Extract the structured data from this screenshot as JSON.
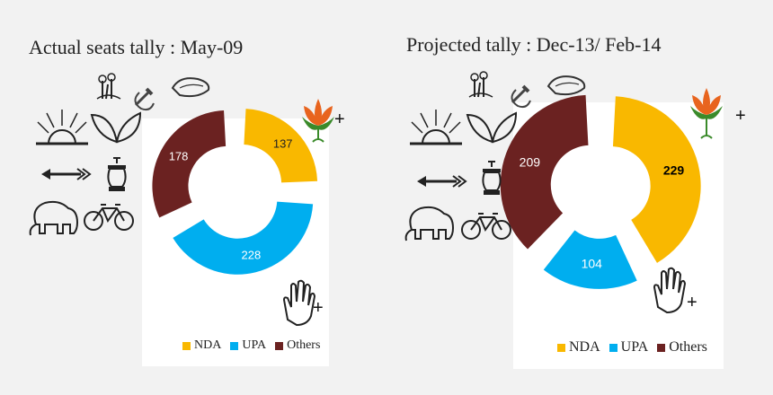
{
  "colors": {
    "NDA": "#f9b800",
    "UPA": "#00aeef",
    "Others": "#6b2221"
  },
  "symbol_icons": [
    "twin-flowers-icon",
    "hammer-sickle-icon",
    "conch-icon",
    "rising-sun-icon",
    "two-leaves-icon",
    "arrow-icon",
    "lantern-icon",
    "elephant-icon",
    "bicycle-icon",
    "lotus-icon",
    "hand-icon"
  ],
  "plus_sign": "+",
  "chart_data": [
    {
      "type": "pie",
      "subtype": "exploded-donut",
      "title": "Actual seats tally : May-09",
      "categories": [
        "NDA",
        "UPA",
        "Others"
      ],
      "values": [
        137,
        228,
        178
      ],
      "labels": [
        "137",
        "228",
        "178"
      ],
      "legend": [
        "NDA",
        "UPA",
        "Others"
      ],
      "legend_position": "bottom-right"
    },
    {
      "type": "pie",
      "subtype": "exploded-donut",
      "title": "Projected tally : Dec-13/ Feb-14",
      "categories": [
        "NDA",
        "UPA",
        "Others"
      ],
      "values": [
        229,
        104,
        209
      ],
      "labels": [
        "229",
        "104",
        "209"
      ],
      "legend": [
        "NDA",
        "UPA",
        "Others"
      ],
      "legend_position": "bottom-right"
    }
  ]
}
